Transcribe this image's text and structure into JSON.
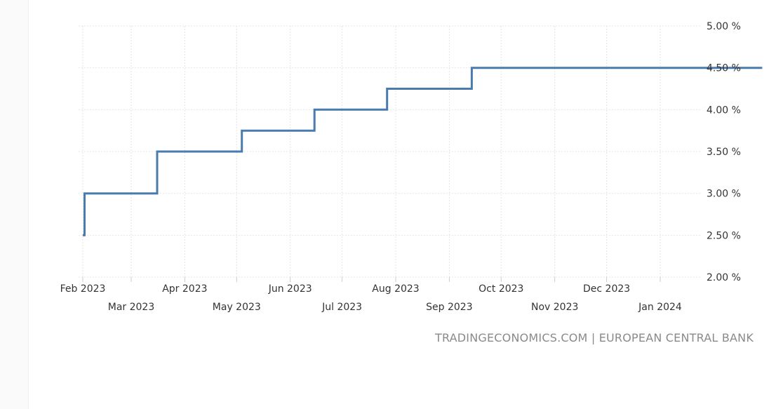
{
  "source_text": "TRADINGECONOMICS.COM | EUROPEAN CENTRAL BANK",
  "colors": {
    "line": "#4a7bad",
    "grid": "#e6e6e6",
    "axis": "#cccccc",
    "text": "#333333",
    "source": "#8a8a8a"
  },
  "chart_data": {
    "type": "line",
    "step": true,
    "title": "",
    "xlabel": "",
    "ylabel": "",
    "ylim": [
      2.0,
      5.0
    ],
    "xlim": [
      "2023-02-01",
      "2024-02-29"
    ],
    "y_ticks": [
      {
        "value": 5.0,
        "label": "5.00 %"
      },
      {
        "value": 4.5,
        "label": "4.50 %"
      },
      {
        "value": 4.0,
        "label": "4.00 %"
      },
      {
        "value": 3.5,
        "label": "3.50 %"
      },
      {
        "value": 3.0,
        "label": "3.00 %"
      },
      {
        "value": 2.5,
        "label": "2.50 %"
      },
      {
        "value": 2.0,
        "label": "2.00 %"
      }
    ],
    "x_ticks": [
      {
        "date": "2023-02-01",
        "label": "Feb 2023",
        "row": 1
      },
      {
        "date": "2023-03-01",
        "label": "Mar 2023",
        "row": 2
      },
      {
        "date": "2023-04-01",
        "label": "Apr 2023",
        "row": 1
      },
      {
        "date": "2023-05-01",
        "label": "May 2023",
        "row": 2
      },
      {
        "date": "2023-06-01",
        "label": "Jun 2023",
        "row": 1
      },
      {
        "date": "2023-07-01",
        "label": "Jul 2023",
        "row": 2
      },
      {
        "date": "2023-08-01",
        "label": "Aug 2023",
        "row": 1
      },
      {
        "date": "2023-09-01",
        "label": "Sep 2023",
        "row": 2
      },
      {
        "date": "2023-10-01",
        "label": "Oct 2023",
        "row": 1
      },
      {
        "date": "2023-11-01",
        "label": "Nov 2023",
        "row": 2
      },
      {
        "date": "2023-12-01",
        "label": "Dec 2023",
        "row": 1
      },
      {
        "date": "2024-01-01",
        "label": "Jan 2024",
        "row": 2
      }
    ],
    "grid": true,
    "series": [
      {
        "points": [
          {
            "date": "2023-02-01",
            "value": 2.5
          },
          {
            "date": "2023-02-02",
            "value": 3.0
          },
          {
            "date": "2023-03-16",
            "value": 3.5
          },
          {
            "date": "2023-05-04",
            "value": 3.75
          },
          {
            "date": "2023-06-15",
            "value": 4.0
          },
          {
            "date": "2023-07-27",
            "value": 4.25
          },
          {
            "date": "2023-09-14",
            "value": 4.5
          },
          {
            "date": "2024-02-29",
            "value": 4.5
          }
        ]
      }
    ]
  }
}
